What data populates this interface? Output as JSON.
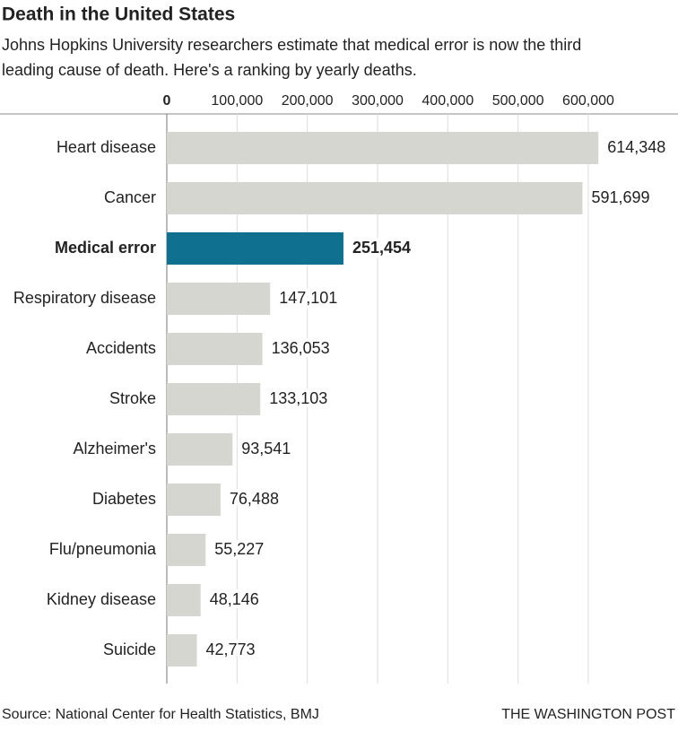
{
  "chart_data": {
    "type": "bar",
    "title": "Death in the United States",
    "subtitle": [
      "Johns Hopkins University researchers estimate that medical error is now the third",
      "leading cause of death. Here's a ranking by yearly deaths."
    ],
    "categories": [
      "Heart disease",
      "Cancer",
      "Medical error",
      "Respiratory disease",
      "Accidents",
      "Stroke",
      "Alzheimer's",
      "Diabetes",
      "Flu/pneumonia",
      "Kidney disease",
      "Suicide"
    ],
    "values": [
      614348,
      591699,
      251454,
      147101,
      136053,
      133103,
      93541,
      76488,
      55227,
      48146,
      42773
    ],
    "value_labels": [
      "614,348",
      "591,699",
      "251,454",
      "147,101",
      "136,053",
      "133,103",
      "93,541",
      "76,488",
      "55,227",
      "48,146",
      "42,773"
    ],
    "color": "#d6d6d1",
    "highlight_color": "#10708f",
    "highlight": 2,
    "xlim": [
      0,
      700000
    ],
    "xticks": [
      0,
      {
        "value": 100000,
        "label": "100,000"
      },
      {
        "value": 200000,
        "label": "200,000"
      },
      {
        "value": 300000,
        "label": "300,000"
      },
      {
        "value": 400000,
        "label": "400,000"
      },
      {
        "value": 500000,
        "label": "500,000"
      },
      {
        "value": 600000,
        "label": "600,000"
      }
    ],
    "grid": true,
    "source": "Source: National Center for Health Statistics, BMJ",
    "credit": "THE WASHINGTON POST"
  }
}
